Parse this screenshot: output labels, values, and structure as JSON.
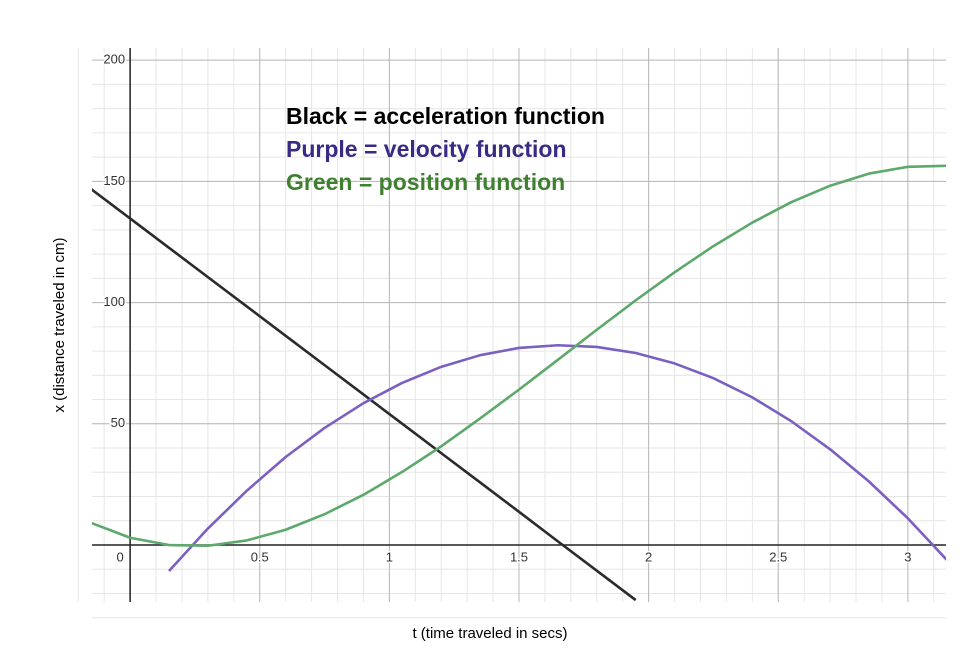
{
  "chart_data": {
    "type": "line",
    "xlabel": "t (time traveled in secs)",
    "ylabel": "x (distance traveled in cm)",
    "xlim": [
      -0.147,
      3.147
    ],
    "ylim": [
      -23.5,
      205
    ],
    "xticks": [
      0,
      0.5,
      1,
      1.5,
      2,
      2.5,
      3
    ],
    "yticks": [
      50,
      100,
      150,
      200
    ],
    "grid": true,
    "x": [
      -0.15,
      0,
      0.15,
      0.3,
      0.45,
      0.6,
      0.75,
      0.9,
      1.05,
      1.2,
      1.35,
      1.5,
      1.65,
      1.8,
      1.95,
      2.1,
      2.25,
      2.4,
      2.55,
      2.7,
      2.85,
      3.0,
      3.15
    ],
    "series": [
      {
        "name": "Black = acceleration function",
        "color": "#2b2b2b",
        "label_color": "#000000",
        "values": [
          146.8,
          134.7,
          122.6,
          110.5,
          98.4,
          86.3,
          74.2,
          62.1,
          50.0,
          37.9,
          25.8,
          13.7,
          1.5,
          -10.6,
          -22.7,
          null,
          null,
          null,
          null,
          null,
          null,
          null,
          null
        ]
      },
      {
        "name": "Purple = velocity function",
        "color": "#7b5fc2",
        "label_color": "#3a2a86",
        "values": [
          null,
          null,
          -10.7,
          6.8,
          22.4,
          36.3,
          48.3,
          58.5,
          66.9,
          73.5,
          78.3,
          81.3,
          82.4,
          81.7,
          79.2,
          74.9,
          68.8,
          60.9,
          51.1,
          39.5,
          26.2,
          11.0,
          -6.1
        ]
      },
      {
        "name": "Green = position function",
        "color": "#5da86b",
        "label_color": "#3e7f30",
        "values": [
          9.1,
          3.0,
          0.0,
          -0.3,
          1.9,
          6.3,
          12.7,
          20.7,
          30.2,
          40.7,
          52.2,
          64.1,
          76.4,
          88.8,
          100.9,
          112.5,
          123.3,
          133.0,
          141.4,
          148.2,
          153.2,
          156.0,
          156.4
        ]
      }
    ]
  }
}
